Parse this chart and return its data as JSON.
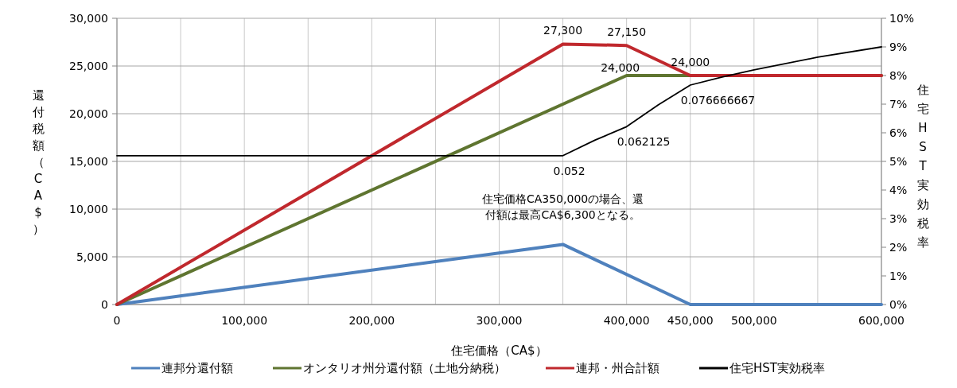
{
  "chart_data": {
    "type": "line",
    "xlabel": "住宅価格（CA$）",
    "ylabel": "還付税額（CA$）",
    "y2label": "住宅HST実効税率",
    "xlim": [
      0,
      600000
    ],
    "xticks": [
      0,
      {
        "value": 50000,
        "label": null
      },
      {
        "value": 100000,
        "label": "100,000"
      },
      {
        "value": 150000,
        "label": null
      },
      {
        "value": 200000,
        "label": "200,000"
      },
      {
        "value": 250000,
        "label": null
      },
      {
        "value": 300000,
        "label": "300,000"
      },
      {
        "value": 350000,
        "label": null
      },
      {
        "value": 400000,
        "label": "400,000"
      },
      {
        "value": 450000,
        "label": "450,000"
      },
      {
        "value": 500000,
        "label": "500,000"
      },
      {
        "value": 550000,
        "label": null
      },
      {
        "value": 600000,
        "label": "600,000"
      }
    ],
    "ylim": [
      0,
      30000
    ],
    "yticks": [
      0,
      {
        "value": 5000,
        "label": "5,000"
      },
      {
        "value": 10000,
        "label": "10,000"
      },
      {
        "value": 15000,
        "label": "15,000"
      },
      {
        "value": 20000,
        "label": "20,000"
      },
      {
        "value": 25000,
        "label": "25,000"
      },
      {
        "value": 30000,
        "label": "30,000"
      }
    ],
    "y2lim": [
      0,
      0.1
    ],
    "y2ticks": [
      {
        "value": 0,
        "label": "0%"
      },
      {
        "value": 0.01,
        "label": "1%"
      },
      {
        "value": 0.02,
        "label": "2%"
      },
      {
        "value": 0.03,
        "label": "3%"
      },
      {
        "value": 0.04,
        "label": "4%"
      },
      {
        "value": 0.05,
        "label": "5%"
      },
      {
        "value": 0.06,
        "label": "6%"
      },
      {
        "value": 0.07,
        "label": "7%"
      },
      {
        "value": 0.08,
        "label": "8%"
      },
      {
        "value": 0.09,
        "label": "9%"
      },
      {
        "value": 0.1,
        "label": "10%"
      }
    ],
    "grid": true,
    "legend": "bottom",
    "marker": "none",
    "line_style": "solid",
    "series": [
      {
        "name": "連邦分還付額",
        "color": "#4f81bd",
        "x": [
          0,
          350000,
          450000,
          600000
        ],
        "values": [
          0,
          6300,
          0,
          0
        ]
      },
      {
        "name": "オンタリオ州分還付額（土地分納税）",
        "color": "#5f7530",
        "x": [
          0,
          400000,
          600000
        ],
        "values": [
          0,
          24000,
          24000
        ],
        "value_labels": [
          null,
          "24,000",
          null
        ]
      },
      {
        "name": "連邦・州合計額",
        "color": "#c0282d",
        "x": [
          0,
          350000,
          400000,
          450000,
          600000
        ],
        "values": [
          0,
          27300,
          27150,
          24000,
          24000
        ],
        "value_labels": [
          null,
          "27,300",
          "27,150",
          "24,000",
          null
        ]
      },
      {
        "name": "住宅HST実効税率",
        "color": "#000000",
        "axis": "y2",
        "x": [
          0,
          350000,
          375000,
          400000,
          425000,
          450000,
          475000,
          500000,
          550000,
          600000
        ],
        "values": [
          0.052,
          0.052,
          0.0574,
          0.062125,
          0.0698,
          0.076666667,
          0.0795,
          0.082,
          0.0864,
          0.09
        ],
        "value_labels": [
          null,
          "0.052",
          null,
          "0.062125",
          null,
          "0.076666667",
          null,
          null,
          null,
          null
        ]
      }
    ],
    "annotations": [
      {
        "text": "住宅価格CA350,000の場合、還付額は最高CA$6,300となる。",
        "x": 350000,
        "y": 6300
      }
    ]
  }
}
